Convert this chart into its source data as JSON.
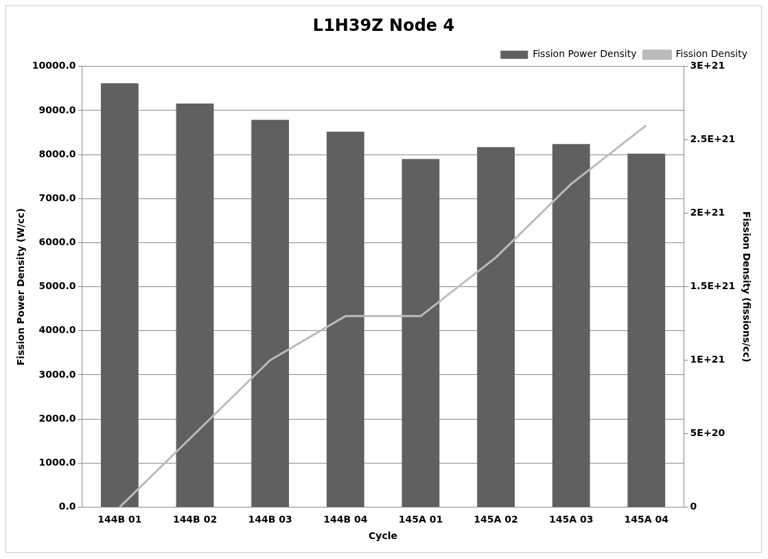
{
  "chart_data": {
    "type": "bar",
    "title": "L1H39Z Node 4",
    "xlabel": "Cycle",
    "ylabel": "Fission Power Density (W/cc)",
    "y2label": "Fission Density (fissions/cc)",
    "categories": [
      "144B 01",
      "144B 02",
      "144B 03",
      "144B 04",
      "145A 01",
      "145A 02",
      "145A 03",
      "145A 04"
    ],
    "series": [
      {
        "name": "Fission Power Density",
        "color": "#606060",
        "values": [
          9620,
          9160,
          8790,
          8520,
          7900,
          8170,
          8240,
          8020
        ]
      },
      {
        "name": "Fission Density",
        "type": "line",
        "axis": "y2",
        "color": "#bbbbbb",
        "values": [
          0,
          5e+20,
          1e+21,
          1.3e+21,
          1.3e+21,
          1.7e+21,
          2.2e+21,
          2.6e+21
        ]
      }
    ],
    "ylim": [
      0,
      10000
    ],
    "yticks": [
      {
        "value": 0,
        "label": "0.0"
      },
      {
        "value": 1000,
        "label": "1000.0"
      },
      {
        "value": 2000,
        "label": "2000.0"
      },
      {
        "value": 3000,
        "label": "3000.0"
      },
      {
        "value": 4000,
        "label": "4000.0"
      },
      {
        "value": 5000,
        "label": "5000.0"
      },
      {
        "value": 6000,
        "label": "6000.0"
      },
      {
        "value": 7000,
        "label": "7000.0"
      },
      {
        "value": 8000,
        "label": "8000.0"
      },
      {
        "value": 9000,
        "label": "9000.0"
      },
      {
        "value": 10000,
        "label": "10000.0"
      }
    ],
    "y2lim": [
      0,
      3e+21
    ],
    "y2ticks": [
      {
        "value": 0,
        "label": "0"
      },
      {
        "value": 5e+20,
        "label": "5E+20"
      },
      {
        "value": 1e+21,
        "label": "1E+21"
      },
      {
        "value": 1.5e+21,
        "label": "1.5E+21"
      },
      {
        "value": 2e+21,
        "label": "2E+21"
      },
      {
        "value": 2.5e+21,
        "label": "2.5E+21"
      },
      {
        "value": 3e+21,
        "label": "3E+21"
      }
    ],
    "grid": "y",
    "legend": "top right",
    "marker": "none"
  }
}
